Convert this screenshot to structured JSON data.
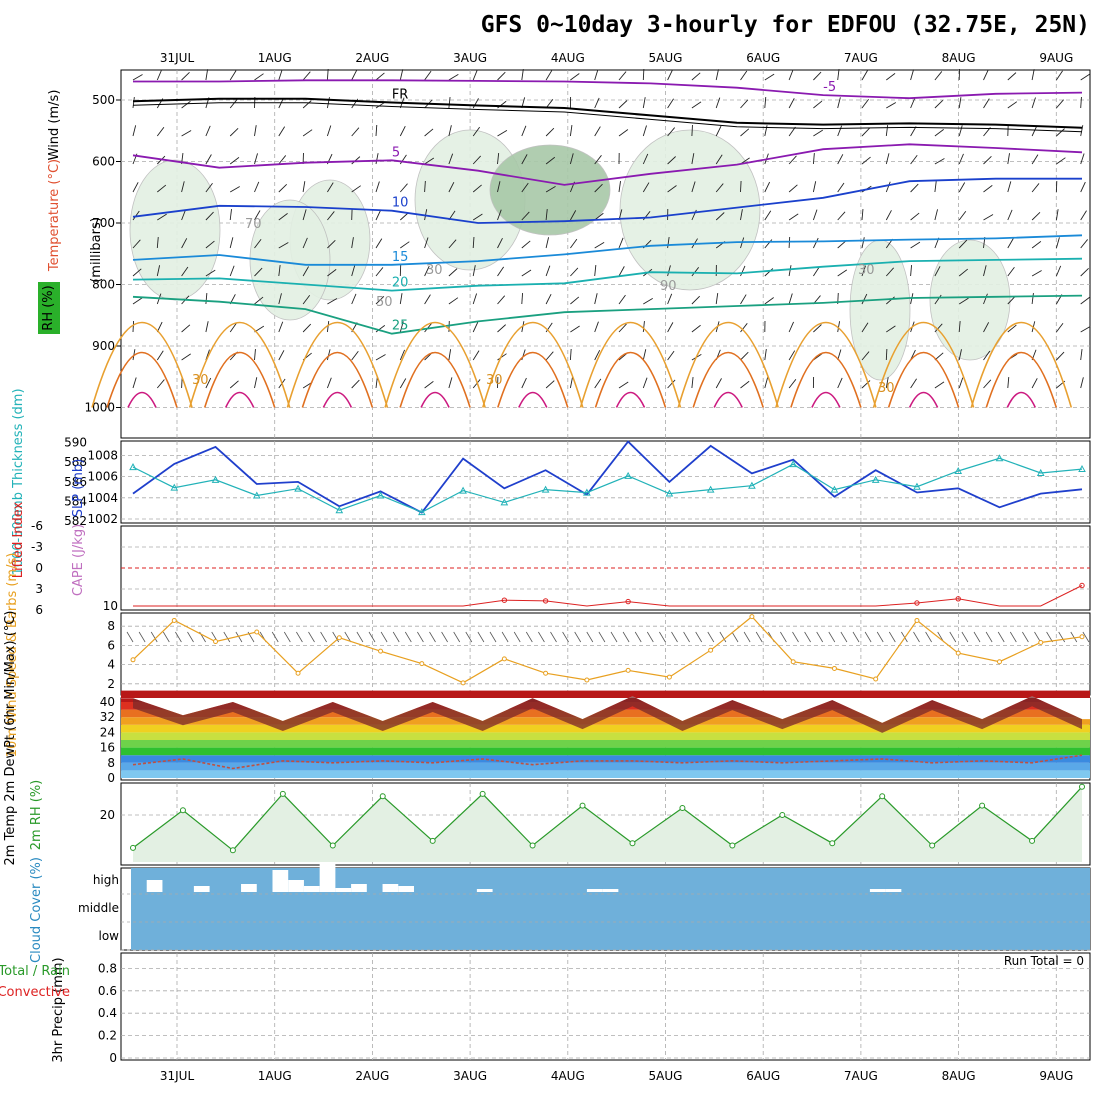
{
  "title": "GFS 0~10day 3-hourly for EDFOU (32.75E, 25N)",
  "dates": [
    "31JUL",
    "1AUG",
    "2AUG",
    "3AUG",
    "4AUG",
    "5AUG",
    "6AUG",
    "7AUG",
    "8AUG",
    "9AUG"
  ],
  "colors": {
    "grid": "#aaaaaa",
    "rh_fill": "#e3f0e3",
    "rh_fill_dark": "#a8c8a8",
    "slp_line": "#1f3fcc",
    "thickness_line": "#22b2b8",
    "lifted_index": "#dd2222",
    "wind_speed": "#e8a020",
    "rh2m_line": "#2a9a2a",
    "cloud_bg": "#6fb0da",
    "temp_dark": "#7a2a2a"
  },
  "chart_data": [
    {
      "type": "contour",
      "panel": "upper-air",
      "ylabel": "(millibars)",
      "side_labels": [
        "Wind (m/s)",
        "Temperature (°C)",
        "RH (%)"
      ],
      "yticks": [
        500,
        600,
        700,
        800,
        900,
        1000
      ],
      "isotherm_labels": [
        "-5",
        "5",
        "10",
        "15",
        "20",
        "25",
        "30",
        "FR"
      ],
      "rh_labels": [
        "30",
        "50",
        "70",
        "90"
      ],
      "isotherms": [
        {
          "label": "-5",
          "pressure_hpa": [
            470,
            470,
            468,
            468,
            469,
            470,
            473,
            480,
            492,
            497,
            490,
            488
          ]
        },
        {
          "label": "FR",
          "pressure_hpa": [
            502,
            498,
            498,
            504,
            509,
            513,
            525,
            537,
            540,
            538,
            540,
            545
          ]
        },
        {
          "label": "5",
          "pressure_hpa": [
            590,
            610,
            602,
            598,
            615,
            638,
            620,
            605,
            580,
            572,
            578,
            585
          ]
        },
        {
          "label": "10",
          "pressure_hpa": [
            690,
            672,
            674,
            680,
            700,
            697,
            691,
            675,
            659,
            632,
            628,
            628
          ]
        },
        {
          "label": "15",
          "pressure_hpa": [
            760,
            752,
            768,
            768,
            762,
            751,
            737,
            731,
            730,
            727,
            725,
            720
          ]
        },
        {
          "label": "20",
          "pressure_hpa": [
            792,
            790,
            800,
            810,
            802,
            798,
            780,
            782,
            771,
            762,
            760,
            758
          ]
        },
        {
          "label": "25",
          "pressure_hpa": [
            820,
            828,
            840,
            880,
            860,
            845,
            840,
            835,
            830,
            822,
            820,
            818
          ]
        }
      ]
    },
    {
      "type": "line",
      "panel": "slp-thickness",
      "ylabel": "1000-500mb Thickness (dm)",
      "ylabel2": "SLP (mb)",
      "yticks_left": [
        582,
        584,
        586,
        588,
        590
      ],
      "yticks_right": [
        1002,
        1004,
        1006,
        1008
      ],
      "series": [
        {
          "name": "SLP (mb)",
          "values": [
            1004.4,
            1007.2,
            1008.8,
            1005.3,
            1005.5,
            1003.2,
            1004.6,
            1002.6,
            1007.7,
            1004.9,
            1006.6,
            1004.3,
            1009.3,
            1005.5,
            1008.9,
            1006.3,
            1007.6,
            1004.1,
            1006.6,
            1004.5,
            1004.9,
            1003.1,
            1004.4,
            1004.8
          ]
        },
        {
          "name": "1000-500mb Thickness (dm)",
          "values": [
            587.5,
            585.4,
            586.2,
            584.6,
            585.3,
            583.1,
            584.6,
            582.9,
            585.1,
            583.9,
            585.2,
            584.9,
            586.6,
            584.8,
            585.2,
            585.6,
            587.8,
            585.2,
            586.2,
            585.5,
            587.1,
            588.4,
            586.9,
            587.3
          ]
        }
      ]
    },
    {
      "type": "line",
      "panel": "stability",
      "ylabel": "Lifted Index",
      "ylabel2": "CAPE (J/kg)",
      "yticks_left": [
        "-6",
        "-3",
        "0",
        "3",
        "6"
      ],
      "yticks_right": [
        "10"
      ],
      "series": [
        {
          "name": "Lifted Index",
          "values": [
            6,
            6,
            6,
            6,
            6,
            6,
            6,
            5.8,
            6,
            4.6,
            4.7,
            6,
            4.8,
            6,
            6,
            6,
            6,
            6,
            6,
            5.0,
            4.4,
            5.9,
            6,
            2.5
          ]
        }
      ]
    },
    {
      "type": "line",
      "panel": "wind-10m",
      "ylabel": "10m Wind Speed & Barbs (m/s)",
      "yticks": [
        2,
        4,
        6,
        8
      ],
      "series": [
        {
          "name": "Speed",
          "values": [
            4.5,
            8.6,
            6.4,
            7.4,
            3.1,
            6.8,
            5.4,
            4.1,
            2.1,
            4.6,
            3.1,
            2.4,
            3.4,
            2.7,
            5.5,
            9.0,
            4.3,
            3.6,
            2.5,
            8.6,
            5.2,
            4.3,
            6.3,
            6.9
          ]
        }
      ]
    },
    {
      "type": "area",
      "panel": "temperature-2m",
      "ylabel": "2m Temp 2m DewPt (6hr Min/Max) (°C)",
      "yticks": [
        0,
        8,
        16,
        24,
        32,
        40
      ],
      "series": [
        {
          "name": "2m Temp",
          "values": [
            42,
            33,
            40,
            30,
            40,
            30,
            40,
            30,
            42,
            31,
            43,
            30,
            41,
            31,
            41,
            29,
            41,
            31,
            43,
            31
          ]
        },
        {
          "name": "2m DewPt",
          "values": [
            7,
            10,
            5,
            9,
            8,
            9,
            8,
            10,
            7,
            9,
            9,
            8,
            9,
            8,
            9,
            10,
            8,
            9,
            8,
            12
          ]
        }
      ]
    },
    {
      "type": "area",
      "panel": "rh-2m",
      "ylabel": "2m RH (%)",
      "yticks": [
        20
      ],
      "series": [
        {
          "name": "2m RH",
          "values": [
            6,
            22,
            5,
            29,
            7,
            28,
            9,
            29,
            7,
            24,
            8,
            23,
            7,
            20,
            8,
            28,
            7,
            24,
            9,
            32
          ]
        }
      ]
    },
    {
      "type": "bar",
      "panel": "cloud-cover",
      "ylabel": "Cloud Cover (%)",
      "yticks": [
        "high",
        "middle",
        "low"
      ],
      "high_cloud": [
        0,
        12,
        0,
        0,
        6,
        0,
        0,
        8,
        0,
        22,
        12,
        6,
        30,
        4,
        8,
        0,
        8,
        6,
        0,
        0,
        0,
        0,
        3,
        0,
        0,
        0,
        0,
        0,
        0,
        3,
        3,
        0,
        0,
        0,
        0,
        0,
        0,
        0,
        0,
        0,
        0,
        0,
        0,
        0,
        0,
        0,
        0,
        3,
        3,
        0,
        0,
        0,
        0,
        0,
        0,
        0,
        0,
        0,
        0,
        0,
        0
      ]
    },
    {
      "type": "bar",
      "panel": "precipitation",
      "ylabel": "3hr Precip (mm)",
      "side_labels": [
        "Total / Rain",
        "Convective"
      ],
      "yticks": [
        "0",
        "0.2",
        "0.4",
        "0.6",
        "0.8"
      ],
      "note": "Run Total = 0",
      "values": []
    }
  ]
}
